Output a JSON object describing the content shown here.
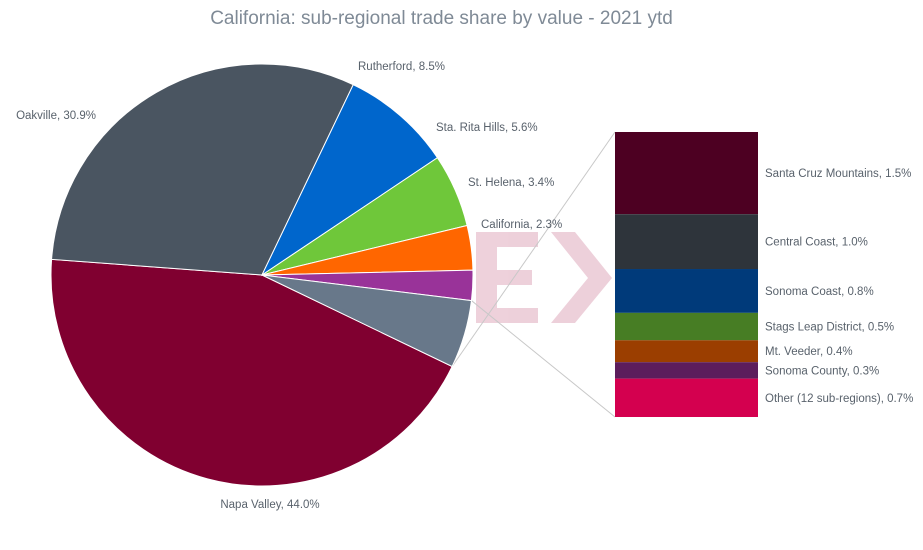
{
  "chart_data": {
    "type": "pie",
    "title": "California: sub-regional trade share by value - 2021 ytd",
    "slices": [
      {
        "label": "Napa Valley, 44.0%",
        "value": 44.0,
        "color": "#800030"
      },
      {
        "label": "Oakville, 30.9%",
        "value": 30.9,
        "color": "#4a5561"
      },
      {
        "label": "Rutherford, 8.5%",
        "value": 8.5,
        "color": "#0066cc"
      },
      {
        "label": "Sta. Rita Hills, 5.6%",
        "value": 5.6,
        "color": "#6fc73a"
      },
      {
        "label": "St. Helena, 3.4%",
        "value": 3.4,
        "color": "#ff6600"
      },
      {
        "label": "California, 2.3%",
        "value": 2.3,
        "color": "#993399"
      },
      {
        "label": "",
        "value": 5.2,
        "color": "#68788a"
      }
    ],
    "breakdown": [
      {
        "label": "Santa Cruz Mountains, 1.5%",
        "value": 1.5,
        "color": "#4d0022"
      },
      {
        "label": "Central Coast, 1.0%",
        "value": 1.0,
        "color": "#2e343b"
      },
      {
        "label": "Sonoma Coast, 0.8%",
        "value": 0.8,
        "color": "#003a7a"
      },
      {
        "label": "Stags Leap District, 0.5%",
        "value": 0.5,
        "color": "#477d24"
      },
      {
        "label": "Mt. Veeder, 0.4%",
        "value": 0.4,
        "color": "#9b3e00"
      },
      {
        "label": "Sonoma County, 0.3%",
        "value": 0.3,
        "color": "#5c1d5c"
      },
      {
        "label": "Other (12 sub-regions), 0.7%",
        "value": 0.7,
        "color": "#d4004f"
      }
    ]
  }
}
